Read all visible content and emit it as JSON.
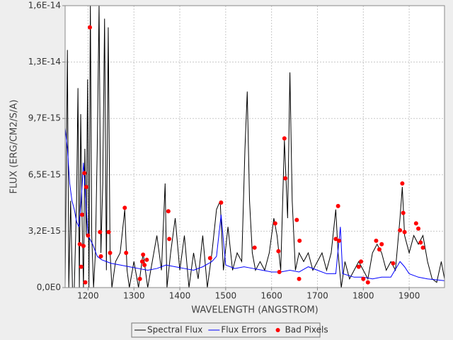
{
  "chart_data": {
    "type": "line",
    "x_label": "WAVELENGTH (ANGSTROM)",
    "y_label": "FLUX (ERG/CM2/S/A)",
    "xlim": [
      1150,
      1977
    ],
    "xticks": [
      1200,
      1300,
      1400,
      1500,
      1600,
      1700,
      1800,
      1900
    ],
    "ylim": [
      0,
      1.625e-14
    ],
    "yticks": [
      {
        "value": 0,
        "label": "0,0E0"
      },
      {
        "value": 3.25e-15,
        "label": "3,2E-15"
      },
      {
        "value": 6.5e-15,
        "label": "6,5E-15"
      },
      {
        "value": 9.75e-15,
        "label": "9,7E-15"
      },
      {
        "value": 1.3e-14,
        "label": "1,3E-14"
      },
      {
        "value": 1.625e-14,
        "label": "1,6E-14"
      }
    ],
    "grid": true,
    "legend": "bottom",
    "series": [
      {
        "name": "Spectral Flux",
        "color": "#000000",
        "type": "line",
        "x": [
          1150,
          1155,
          1158,
          1162,
          1166,
          1170,
          1175,
          1178,
          1181,
          1184,
          1187,
          1190,
          1193,
          1196,
          1199,
          1202,
          1205,
          1208,
          1212,
          1216,
          1220,
          1224,
          1228,
          1232,
          1236,
          1240,
          1244,
          1248,
          1252,
          1260,
          1270,
          1280,
          1285,
          1290,
          1300,
          1310,
          1320,
          1330,
          1340,
          1350,
          1360,
          1368,
          1372,
          1380,
          1390,
          1400,
          1410,
          1420,
          1430,
          1440,
          1450,
          1460,
          1470,
          1480,
          1488,
          1495,
          1505,
          1515,
          1525,
          1535,
          1542,
          1547,
          1552,
          1558,
          1565,
          1575,
          1585,
          1595,
          1605,
          1612,
          1620,
          1628,
          1635,
          1640,
          1645,
          1652,
          1660,
          1670,
          1680,
          1690,
          1700,
          1710,
          1720,
          1730,
          1740,
          1745,
          1752,
          1760,
          1770,
          1780,
          1790,
          1800,
          1810,
          1820,
          1830,
          1840,
          1850,
          1860,
          1870,
          1880,
          1885,
          1890,
          1900,
          1910,
          1920,
          1930,
          1940,
          1950,
          1960,
          1970,
          1977
        ],
        "values": [
          0,
          1.37e-14,
          0,
          5e-15,
          0,
          0,
          5e-15,
          1.15e-14,
          0,
          1e-14,
          4e-15,
          0,
          8e-15,
          3e-15,
          1.2e-14,
          0,
          1.65e-14,
          3e-15,
          0,
          2e-15,
          8e-15,
          1.63e-14,
          2e-15,
          6e-15,
          1.55e-14,
          1e-15,
          1.5e-14,
          2e-15,
          0,
          1.5e-15,
          2e-15,
          4.5e-15,
          1e-15,
          0,
          1.5e-15,
          0,
          2e-15,
          0,
          1.5e-15,
          3e-15,
          1e-15,
          6e-15,
          0,
          2e-15,
          4e-15,
          1e-15,
          3e-15,
          0,
          2e-15,
          5e-16,
          3e-15,
          0,
          2e-15,
          4.5e-15,
          5e-15,
          1e-15,
          3.5e-15,
          1e-15,
          2e-15,
          1.5e-15,
          8e-15,
          1.13e-14,
          5e-15,
          2e-15,
          1e-15,
          1.5e-15,
          1e-15,
          2e-15,
          4e-15,
          3e-15,
          1e-15,
          8.5e-15,
          4e-15,
          1.24e-14,
          5e-15,
          1e-15,
          2e-15,
          1.5e-15,
          2e-15,
          1e-15,
          1.5e-15,
          2e-15,
          1e-15,
          2e-15,
          4.5e-15,
          2e-15,
          0,
          1.5e-15,
          5e-16,
          1e-15,
          1.5e-15,
          1e-15,
          5e-16,
          2e-15,
          2.5e-15,
          2e-15,
          1e-15,
          1.5e-15,
          1e-15,
          4e-15,
          5.8e-15,
          3e-15,
          2e-15,
          3e-15,
          2.5e-15,
          3e-15,
          1.5e-15,
          5e-16,
          3e-16,
          1.5e-15,
          5e-16
        ]
      },
      {
        "name": "Flux Errors",
        "color": "#0000ff",
        "type": "line",
        "x": [
          1150,
          1155,
          1160,
          1165,
          1170,
          1175,
          1180,
          1185,
          1190,
          1195,
          1200,
          1210,
          1220,
          1230,
          1240,
          1250,
          1270,
          1290,
          1310,
          1330,
          1350,
          1370,
          1390,
          1410,
          1430,
          1450,
          1470,
          1480,
          1490,
          1500,
          1520,
          1540,
          1560,
          1580,
          1600,
          1620,
          1640,
          1660,
          1680,
          1700,
          1720,
          1740,
          1750,
          1755,
          1780,
          1800,
          1820,
          1840,
          1860,
          1880,
          1890,
          1900,
          1920,
          1940,
          1977
        ],
        "values": [
          9.2e-15,
          8e-15,
          6e-15,
          5e-15,
          4.5e-15,
          3.8e-15,
          3.5e-15,
          5e-15,
          7.2e-15,
          5e-15,
          3e-15,
          2.5e-15,
          1.8e-15,
          1.6e-15,
          1.5e-15,
          1.4e-15,
          1.3e-15,
          1.2e-15,
          1.1e-15,
          1e-15,
          1.1e-15,
          1.3e-15,
          1.2e-15,
          1.1e-15,
          1e-15,
          1.2e-15,
          1.5e-15,
          1.8e-15,
          4.2e-15,
          1.3e-15,
          1.1e-15,
          1.2e-15,
          1.1e-15,
          1e-15,
          9e-16,
          9e-16,
          1e-15,
          9e-16,
          1.2e-15,
          1e-15,
          8e-16,
          8e-16,
          3.5e-15,
          8e-16,
          6e-16,
          6e-16,
          5e-16,
          6e-16,
          6e-16,
          1.5e-15,
          1.2e-15,
          8e-16,
          6e-16,
          5e-16,
          4e-16
        ]
      },
      {
        "name": "Bad Pixels",
        "color": "#ff0000",
        "type": "scatter",
        "x": [
          1182,
          1185,
          1187,
          1190,
          1192,
          1194,
          1196,
          1200,
          1204,
          1226,
          1228,
          1245,
          1248,
          1280,
          1283,
          1313,
          1318,
          1320,
          1323,
          1328,
          1375,
          1377,
          1466,
          1490,
          1563,
          1608,
          1615,
          1617,
          1628,
          1630,
          1655,
          1660,
          1661,
          1740,
          1745,
          1747,
          1790,
          1795,
          1800,
          1810,
          1828,
          1835,
          1840,
          1865,
          1880,
          1885,
          1887,
          1890,
          1915,
          1920,
          1925,
          1930
        ],
        "values": [
          2.5e-15,
          1.2e-15,
          4.2e-15,
          2.4e-15,
          6.6e-15,
          3e-16,
          5.8e-15,
          3e-15,
          1.5e-14,
          3.2e-15,
          1.8e-15,
          3.2e-15,
          2e-15,
          4.6e-15,
          2e-15,
          5e-16,
          1.5e-15,
          1.9e-15,
          1.3e-15,
          1.6e-15,
          4.4e-15,
          2.8e-15,
          1.7e-15,
          4.9e-15,
          2.3e-15,
          3.7e-15,
          2.1e-15,
          9e-16,
          8.6e-15,
          6.3e-15,
          3.9e-15,
          5e-16,
          2.7e-15,
          2.8e-15,
          4.7e-15,
          2.7e-15,
          1.2e-15,
          1.5e-15,
          5e-16,
          3e-16,
          2.7e-15,
          2.2e-15,
          2.5e-15,
          1.4e-15,
          3.3e-15,
          6e-15,
          4.3e-15,
          3.2e-15,
          3.7e-15,
          3.4e-15,
          2.6e-15,
          2.3e-15
        ]
      }
    ]
  }
}
